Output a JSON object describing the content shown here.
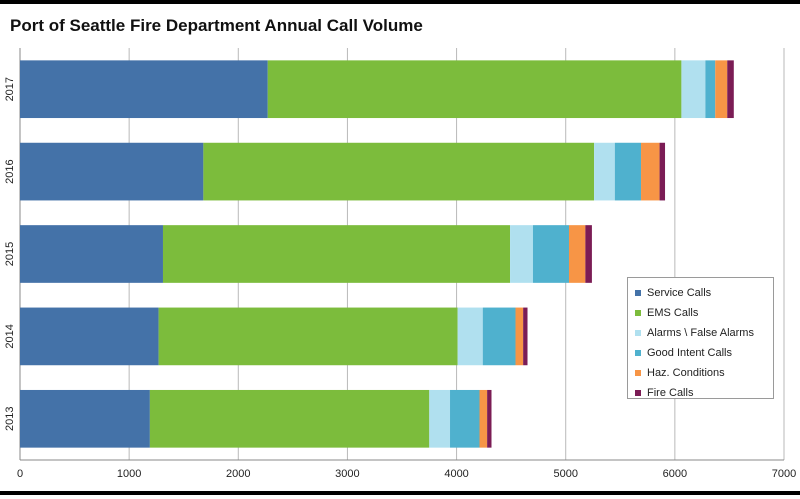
{
  "chart_data": {
    "type": "bar",
    "orientation": "horizontal",
    "stacked": true,
    "title": "Port of Seattle Fire Department Annual Call Volume",
    "categories": [
      "2017",
      "2016",
      "2015",
      "2014",
      "2013"
    ],
    "series": [
      {
        "name": "Service Calls",
        "color": "#4472a8",
        "values": [
          2270,
          1680,
          1310,
          1270,
          1190
        ]
      },
      {
        "name": "EMS Calls",
        "color": "#7cbc3c",
        "values": [
          3790,
          3580,
          3180,
          2740,
          2560
        ]
      },
      {
        "name": "Alarms \\ False Alarms",
        "color": "#b0e0ef",
        "values": [
          220,
          190,
          210,
          230,
          190
        ]
      },
      {
        "name": "Good Intent Calls",
        "color": "#4fb1ce",
        "values": [
          90,
          240,
          330,
          300,
          270
        ]
      },
      {
        "name": "Haz. Conditions",
        "color": "#f79546",
        "values": [
          110,
          170,
          150,
          70,
          70
        ]
      },
      {
        "name": "Fire Calls",
        "color": "#7b1c55",
        "values": [
          60,
          50,
          60,
          40,
          40
        ]
      }
    ],
    "xlim": [
      0,
      7000
    ],
    "xticks": [
      "0",
      "1000",
      "2000",
      "3000",
      "4000",
      "5000",
      "6000",
      "7000"
    ],
    "grid": true,
    "legend_position": "right"
  }
}
